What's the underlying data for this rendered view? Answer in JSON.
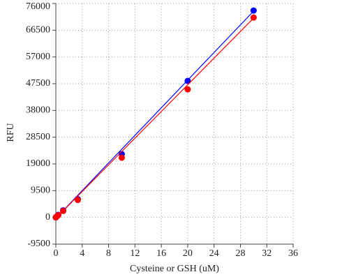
{
  "chart_data": {
    "type": "scatter",
    "x_label": "Cysteine or GSH (uM)",
    "y_label": "RFU",
    "xlim": [
      0,
      36
    ],
    "xticks": [
      0,
      4,
      8,
      12,
      16,
      20,
      24,
      28,
      32,
      36
    ],
    "ylim": [
      -9500,
      76000
    ],
    "yticks": [
      -9500,
      0,
      9500,
      19000,
      28500,
      38000,
      47500,
      57000,
      66500,
      76000
    ],
    "grid": true,
    "series": [
      {
        "color": "#0000ff",
        "x": [
          0,
          0.041,
          0.123,
          0.37,
          1.11,
          3.33,
          10,
          20,
          30
        ],
        "values": [
          0,
          100,
          300,
          900,
          2500,
          6500,
          22500,
          48500,
          73500
        ],
        "fit_x": [
          0,
          30
        ],
        "fit_values": [
          -300,
          73300
        ]
      },
      {
        "color": "#ff0000",
        "x": [
          0,
          0.041,
          0.123,
          0.37,
          1.11,
          3.33,
          10,
          20,
          30
        ],
        "values": [
          0,
          100,
          300,
          800,
          2300,
          6200,
          21200,
          45500,
          71000
        ],
        "fit_x": [
          0,
          30
        ],
        "fit_values": [
          -300,
          70800
        ]
      }
    ]
  }
}
